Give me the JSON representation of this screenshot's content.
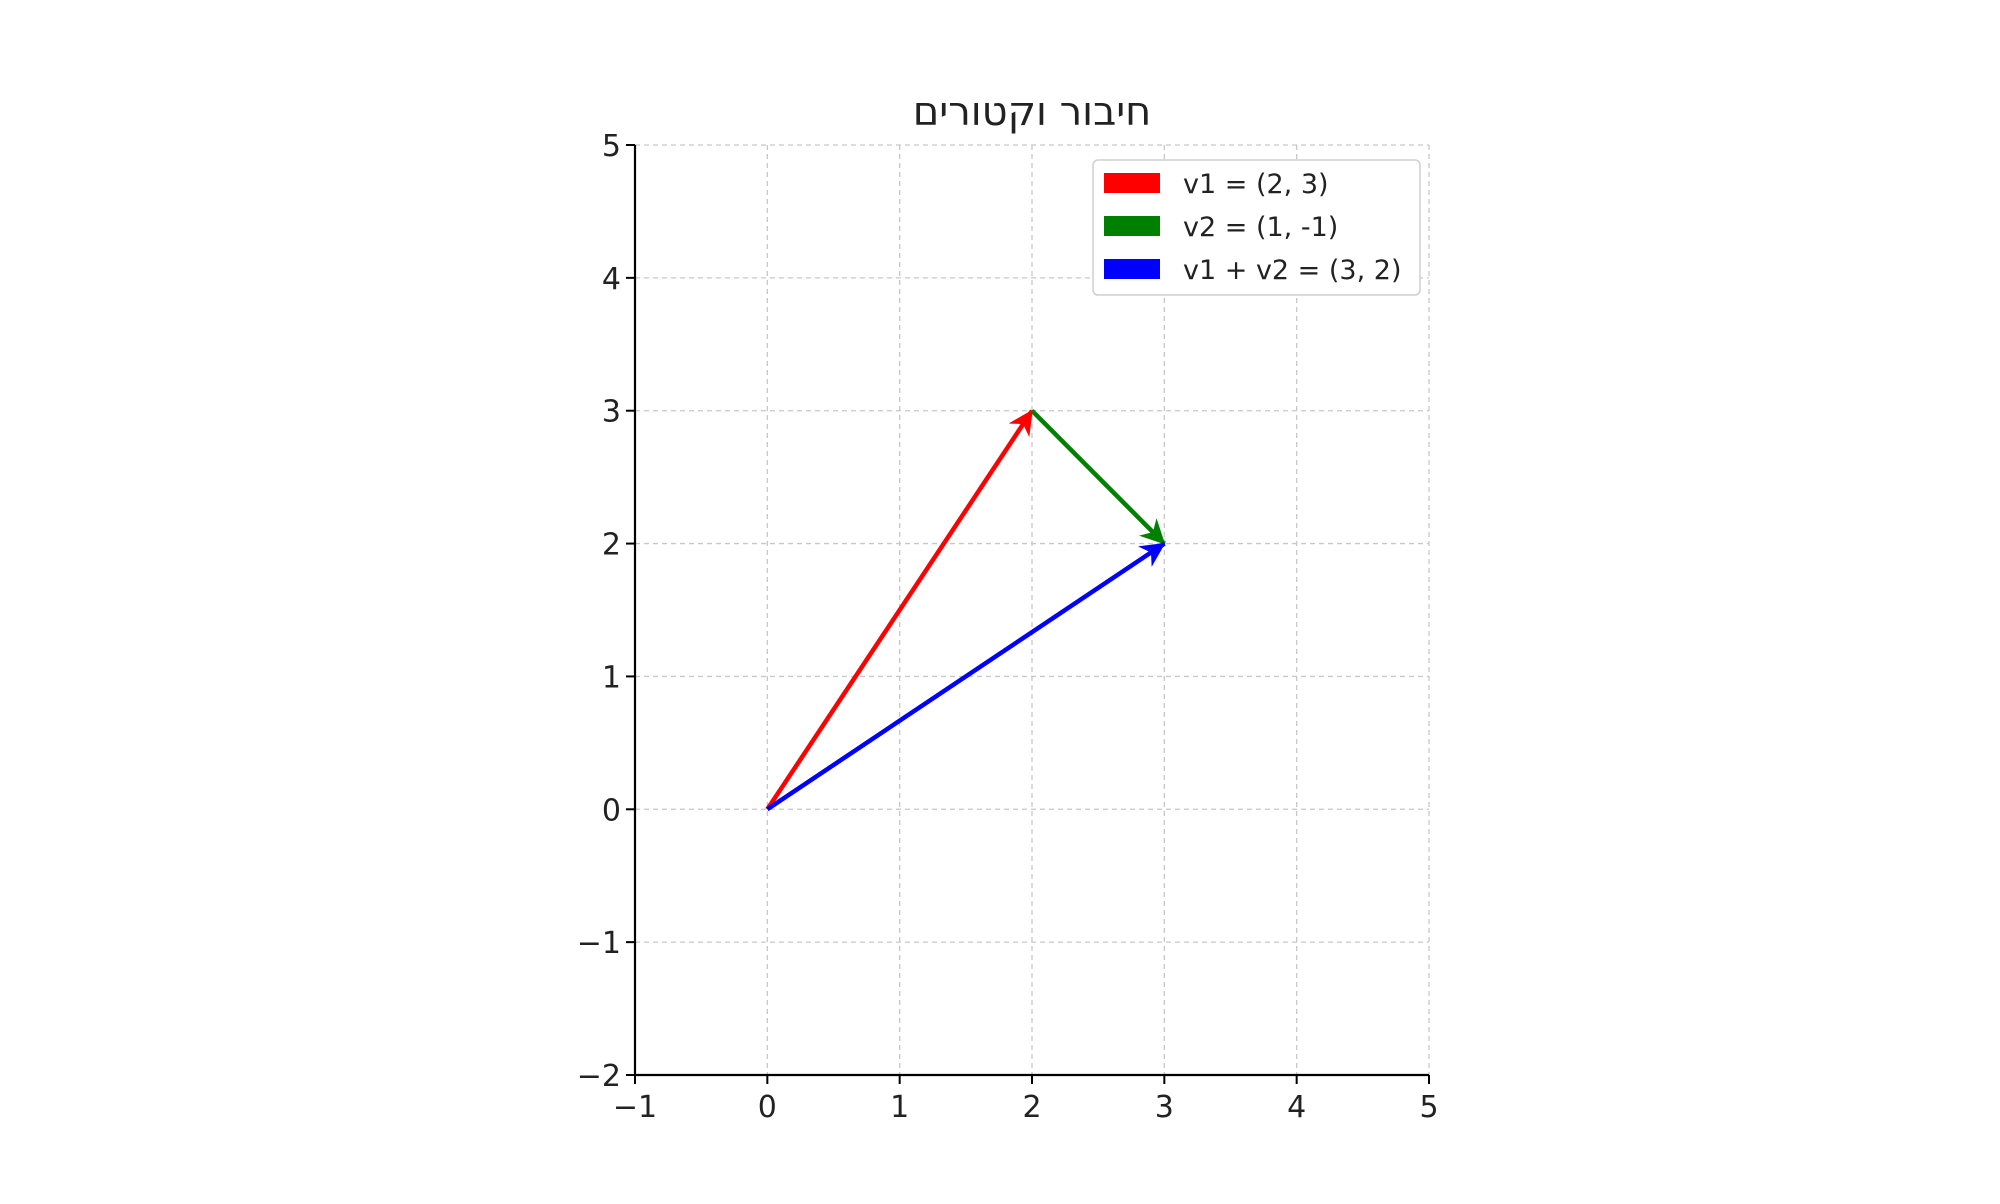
{
  "chart_data": {
    "type": "line",
    "title": "חיבור וקטורים",
    "xlabel": "",
    "ylabel": "",
    "xlim": [
      -1,
      5
    ],
    "ylim": [
      -2,
      5
    ],
    "x_ticks": [
      -1,
      0,
      1,
      2,
      3,
      4,
      5
    ],
    "y_ticks": [
      -2,
      -1,
      0,
      1,
      2,
      3,
      4,
      5
    ],
    "x_tick_labels": [
      "−1",
      "0",
      "1",
      "2",
      "3",
      "4",
      "5"
    ],
    "y_tick_labels": [
      "−2",
      "−1",
      "0",
      "1",
      "2",
      "3",
      "4",
      "5"
    ],
    "grid": true,
    "grid_style": "dashed",
    "legend_position": "top-right",
    "series": [
      {
        "name": "v1 = (2, 3)",
        "color": "#ff0000",
        "start": [
          0,
          0
        ],
        "end": [
          2,
          3
        ]
      },
      {
        "name": "v2 = (1, -1)",
        "color": "#008000",
        "start": [
          2,
          3
        ],
        "end": [
          3,
          2
        ]
      },
      {
        "name": "v1 + v2 = (3, 2)",
        "color": "#0000ff",
        "start": [
          0,
          0
        ],
        "end": [
          3,
          2
        ]
      }
    ]
  }
}
